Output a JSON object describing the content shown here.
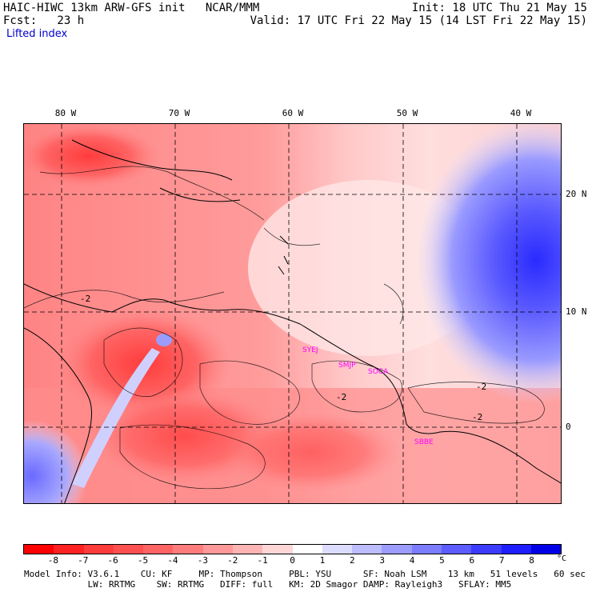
{
  "header": {
    "title_left": "HAIC-HIWC 13km ARW-GFS init   NCAR/MMM",
    "fcst": "Fcst:   23 h",
    "field": "Lifted index",
    "init": "Init: 18 UTC Thu 21 May 15",
    "valid": "Valid: 17 UTC Fri 22 May 15 (14 LST Fri 22 May 15)"
  },
  "map": {
    "lon_labels": [
      "80 W",
      "70 W",
      "60 W",
      "50 W",
      "40 W"
    ],
    "lat_labels": [
      "20 N",
      "10 N",
      "0"
    ],
    "contour_labels": [
      "-2",
      "-2",
      "-2",
      "-2"
    ],
    "stations": [
      "SYEJ",
      "SMJP",
      "SOCA",
      "SBBE"
    ]
  },
  "colorbar": {
    "unit": "°C",
    "ticks": [
      "-8",
      "-7",
      "-6",
      "-5",
      "-4",
      "-3",
      "-2",
      "-1",
      "0",
      "1",
      "2",
      "3",
      "4",
      "5",
      "6",
      "7",
      "8"
    ],
    "colors": [
      "#ff0000",
      "#ff2222",
      "#ff3c3c",
      "#ff5050",
      "#ff6464",
      "#ff7c7c",
      "#ff9898",
      "#ffb4b4",
      "#ffd6d6",
      "#ffffff",
      "#dcdcff",
      "#bcbcff",
      "#9c9cff",
      "#7c7cff",
      "#5c5cff",
      "#3c3cff",
      "#1e1eff",
      "#0000e6"
    ]
  },
  "footer": {
    "line1": "Model Info: V3.6.1    CU: KF     MP: Thompson     PBL: YSU      SF: Noah LSM    13 km   51 levels   60 sec",
    "line2": "            LW: RRTMG    SW: RRTMG   DIFF: full   KM: 2D Smagor DAMP: Rayleigh3   SFLAY: MM5"
  }
}
